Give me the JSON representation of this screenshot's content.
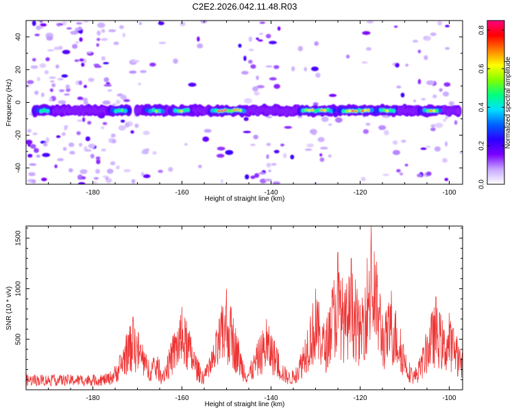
{
  "figure": {
    "title": "C2E2.2026.042.11.48.R03"
  },
  "chart_data": [
    {
      "type": "heatmap",
      "title": "C2E2.2026.042.11.48.R03",
      "xlabel": "Height of straight line (km)",
      "ylabel": "Frequency (Hz)",
      "xlim": [
        -195,
        -97
      ],
      "ylim": [
        -50,
        50
      ],
      "x_ticks": [
        -180,
        -160,
        -140,
        -120,
        -100
      ],
      "y_ticks": [
        -40,
        -20,
        0,
        20,
        40
      ],
      "colorbar": {
        "label": "Normalized spectral amplitude",
        "range": [
          0,
          0.85
        ],
        "ticks": [
          0.0,
          0.2,
          0.4,
          0.6,
          0.8
        ],
        "stops": [
          "#ffffff",
          "#c8a8ff",
          "#7a00ff",
          "#2a00ff",
          "#0060ff",
          "#00e0ff",
          "#00ff80",
          "#80ff00",
          "#ffff00",
          "#ff8000",
          "#ff0000",
          "#ff0080"
        ]
      },
      "band": {
        "center_frequency_hz": -5,
        "x_range": [
          -193,
          -98
        ],
        "peaks": [
          {
            "x": -151,
            "amplitude": 0.84
          },
          {
            "x": -148,
            "amplitude": 0.7
          },
          {
            "x": -131,
            "amplitude": 0.72
          },
          {
            "x": -128,
            "amplitude": 0.68
          },
          {
            "x": -122,
            "amplitude": 0.84
          },
          {
            "x": -119,
            "amplitude": 0.74
          },
          {
            "x": -114,
            "amplitude": 0.68
          },
          {
            "x": -104,
            "amplitude": 0.74
          },
          {
            "x": -166,
            "amplitude": 0.56
          },
          {
            "x": -160,
            "amplitude": 0.6
          },
          {
            "x": -174,
            "amplitude": 0.52
          },
          {
            "x": -191,
            "amplitude": 0.45
          }
        ]
      }
    },
    {
      "type": "line",
      "xlabel": "Height of straight line (km)",
      "ylabel": "SNR (10 * v/v)",
      "xlim": [
        -195,
        -97
      ],
      "ylim": [
        0,
        1620
      ],
      "x_ticks": [
        -180,
        -160,
        -140,
        -120,
        -100
      ],
      "y_ticks": [
        500,
        1000,
        1500
      ],
      "color": "#ee3333",
      "baseline": 150,
      "peaks": [
        {
          "x": -171,
          "y": 720
        },
        {
          "x": -160,
          "y": 820
        },
        {
          "x": -150,
          "y": 1000
        },
        {
          "x": -141,
          "y": 700
        },
        {
          "x": -130,
          "y": 1000
        },
        {
          "x": -125,
          "y": 1360
        },
        {
          "x": -122,
          "y": 1300
        },
        {
          "x": -117.5,
          "y": 1620
        },
        {
          "x": -113,
          "y": 980
        },
        {
          "x": -103,
          "y": 920
        },
        {
          "x": -100,
          "y": 760
        }
      ]
    }
  ]
}
